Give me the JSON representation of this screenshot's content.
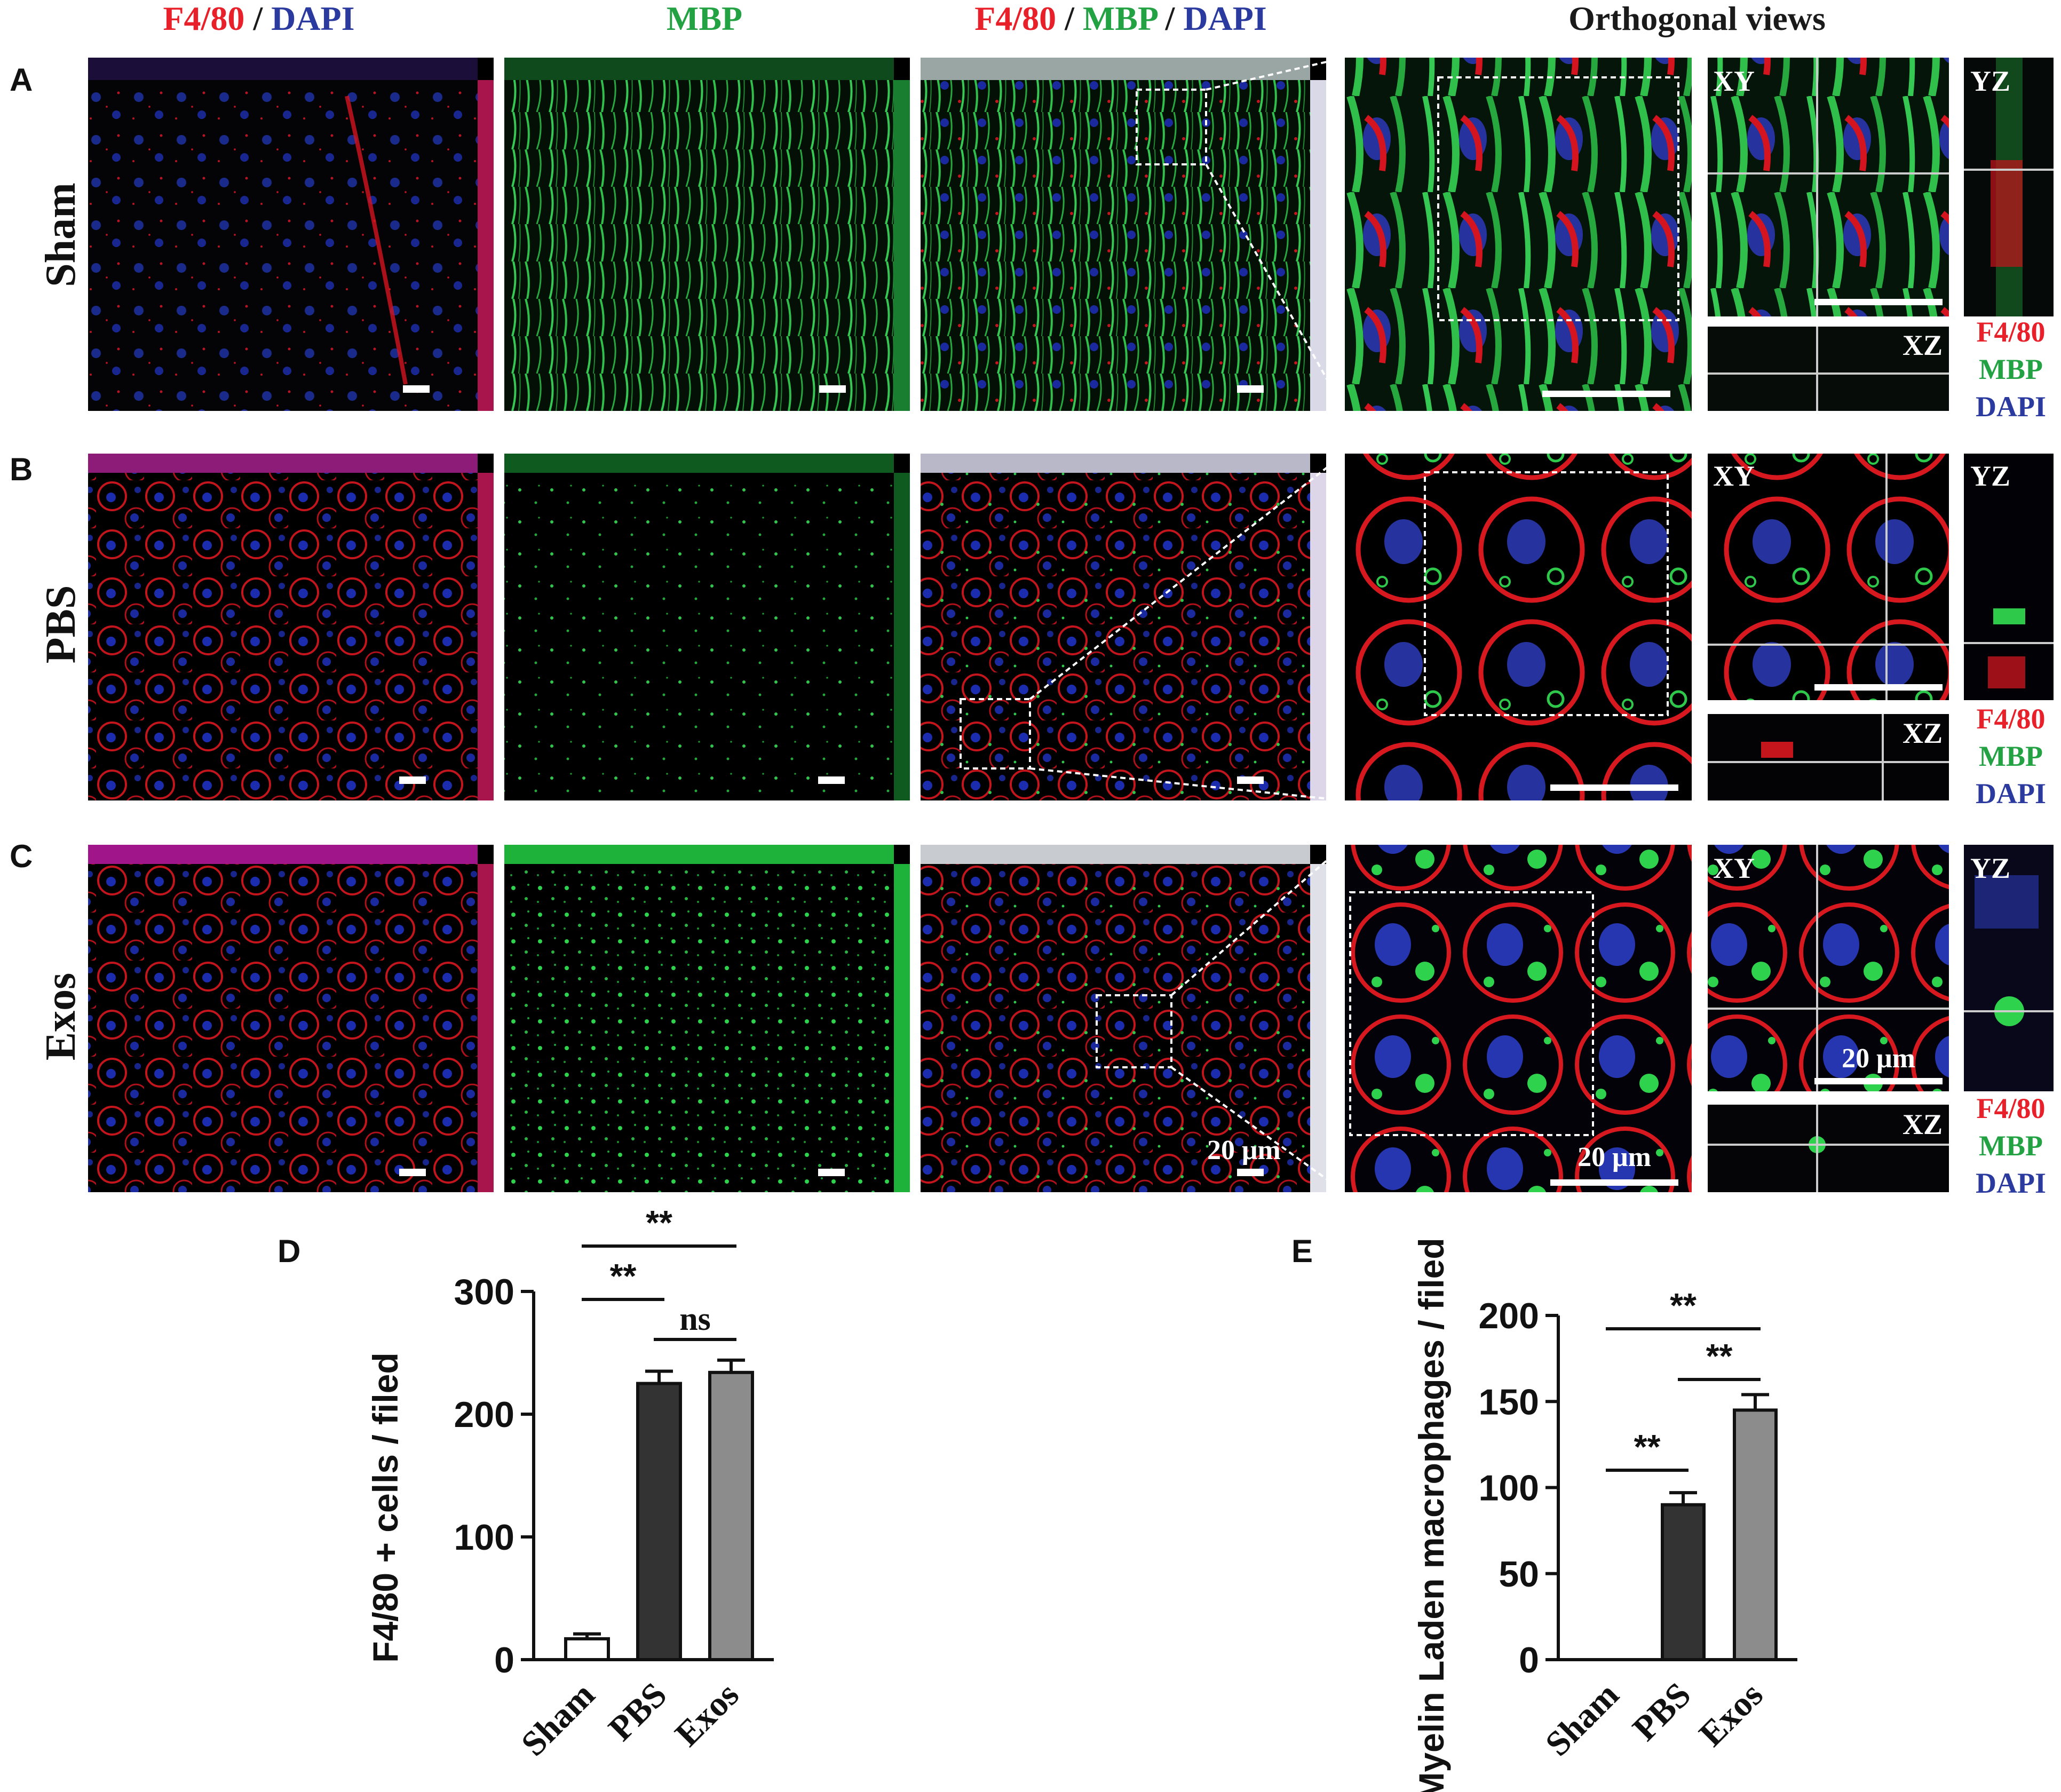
{
  "header": {
    "col1": {
      "a": "F4/80",
      "sep": " / ",
      "b": "DAPI"
    },
    "col2": "MBP",
    "col3": {
      "a": "F4/80",
      "sep1": " / ",
      "b": "MBP",
      "sep2": " / ",
      "c": "DAPI"
    },
    "col4": "Orthogonal views"
  },
  "rows": [
    {
      "letter": "A",
      "group": "Sham"
    },
    {
      "letter": "B",
      "group": "PBS"
    },
    {
      "letter": "C",
      "group": "Exos"
    }
  ],
  "ortho": {
    "xy": "XY",
    "yz": "YZ",
    "xz": "XZ"
  },
  "channel_legend": {
    "red": "F4/80",
    "green": "MBP",
    "blue": "DAPI"
  },
  "scale_bar_text": "20 μm",
  "colors": {
    "red": "#e8202a",
    "green": "#1f9a3c",
    "blue": "#1f2f9a",
    "bar_dark": "#2b2b2b",
    "bar_grey": "#8a8a8a"
  },
  "chart_data": [
    {
      "panel": "D",
      "type": "bar",
      "ylabel": "F4/80 + cells / filed",
      "categories": [
        "Sham",
        "PBS",
        "Exos"
      ],
      "values": [
        17,
        225,
        234
      ],
      "errors": [
        4,
        10,
        10
      ],
      "ylim": [
        0,
        300
      ],
      "yticks": [
        0,
        100,
        200,
        300
      ],
      "significance": [
        {
          "pair": [
            "Sham",
            "Exos"
          ],
          "label": "**"
        },
        {
          "pair": [
            "Sham",
            "PBS"
          ],
          "label": "**"
        },
        {
          "pair": [
            "PBS",
            "Exos"
          ],
          "label": "ns"
        }
      ]
    },
    {
      "panel": "E",
      "type": "bar",
      "ylabel": "Myelin Laden macrophages / filed",
      "categories": [
        "Sham",
        "PBS",
        "Exos"
      ],
      "values": [
        0,
        90,
        145
      ],
      "errors": [
        0,
        7,
        9
      ],
      "ylim": [
        0,
        200
      ],
      "yticks": [
        0,
        50,
        100,
        150,
        200
      ],
      "significance": [
        {
          "pair": [
            "Sham",
            "Exos"
          ],
          "label": "**"
        },
        {
          "pair": [
            "PBS",
            "Exos"
          ],
          "label": "**"
        },
        {
          "pair": [
            "Sham",
            "PBS"
          ],
          "label": "**"
        }
      ]
    }
  ]
}
